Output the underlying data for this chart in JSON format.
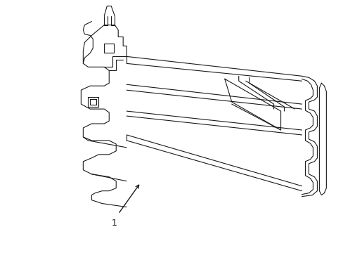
{
  "background_color": "#ffffff",
  "line_color": "#1a1a1a",
  "line_width": 0.8,
  "label_number": "1",
  "figsize": [
    4.89,
    3.6
  ],
  "dpi": 100
}
